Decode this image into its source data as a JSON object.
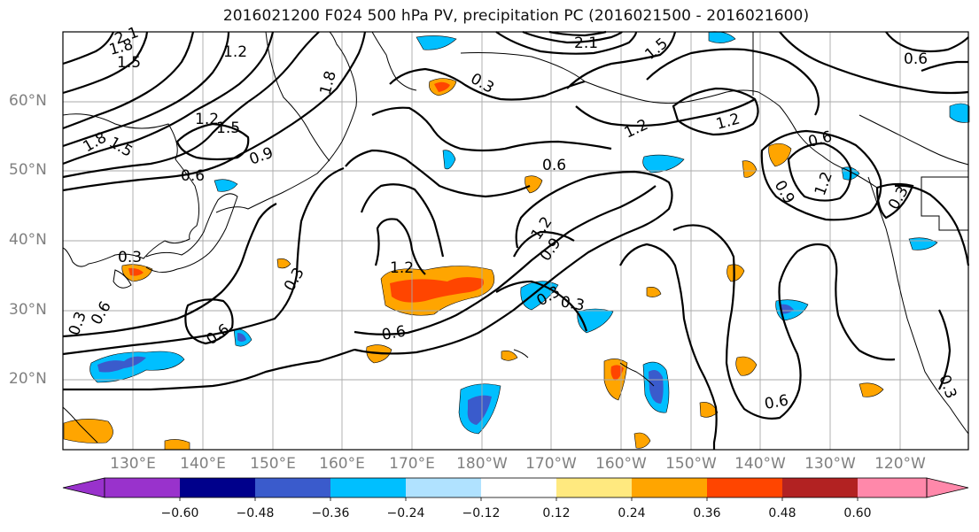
{
  "title": "2016021200 F024 500 hPa PV, precipitation PC (2016021500 - 2016021600)",
  "lat_labels": [
    "60°N",
    "50°N",
    "40°N",
    "30°N",
    "20°N"
  ],
  "lon_labels": [
    "130°E",
    "140°E",
    "150°E",
    "160°E",
    "170°E",
    "180°W",
    "170°W",
    "160°W",
    "150°W",
    "140°W",
    "130°W",
    "120°W"
  ],
  "colorbar": {
    "ticks": [
      "−0.60",
      "−0.48",
      "−0.36",
      "−0.24",
      "−0.12",
      "0.12",
      "0.24",
      "0.36",
      "0.48",
      "0.60"
    ],
    "colors": [
      "#9932cc",
      "#00008b",
      "#3a5bcc",
      "#00bfff",
      "#b0e2ff",
      "#ffffff",
      "#ffe97f",
      "#ffa500",
      "#ff4500",
      "#b22222",
      "#ff88aa"
    ]
  },
  "contour_labels": [
    "2.1",
    "1.8",
    "1.5",
    "1.2",
    "1.8",
    "1.2",
    "1.5",
    "1.5",
    "1.8",
    "0.9",
    "0.6",
    "0.3",
    "0.3",
    "0.6",
    "0.6",
    "0.3",
    "1.2",
    "0.6",
    "0.3",
    "0.3",
    "0.9",
    "1.2",
    "0.6",
    "1.2",
    "1.2",
    "0.9",
    "1.2",
    "0.3",
    "0.6",
    "0.3",
    "0.6",
    "2.1",
    "1.5",
    "0.6",
    "0.3"
  ],
  "shading_colors": {
    "light_orange": "#ffe97f",
    "orange": "#ffa500",
    "red_orange": "#ff4500",
    "light_blue": "#00bfff",
    "blue": "#3a5bcc"
  }
}
